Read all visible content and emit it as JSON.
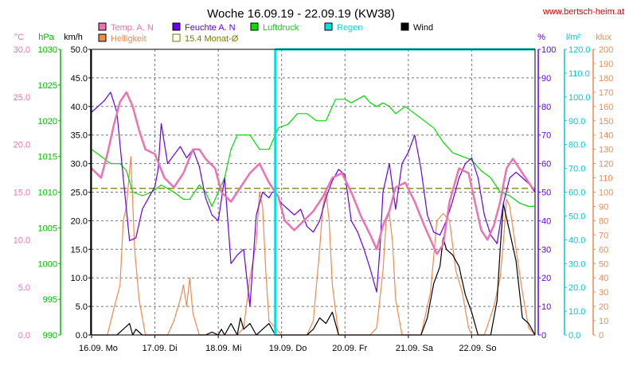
{
  "header": {
    "title": "Woche 16.09.19 - 22.09.19 (KW38)",
    "website": "www.bertsch-heim.at"
  },
  "chart_data": {
    "type": "line",
    "title": "Woche 16.09.19 - 22.09.19 (KW38)",
    "xlim": [
      0,
      7
    ],
    "x_tick_labels": [
      "16.09.  Mo",
      "17.09.  Di",
      "18.09.  Mi",
      "19.09.  Do",
      "20.09.  Fr",
      "21.09.  Sa",
      "22.09.  So"
    ],
    "legend": [
      {
        "label": "Temp. A. N",
        "color": "#ee72b0",
        "swatch": "box"
      },
      {
        "label": "Feuchte A. N",
        "color": "#6600ee",
        "swatch": "box"
      },
      {
        "label": "Luftdruck",
        "color": "#00dd00",
        "swatch": "box"
      },
      {
        "label": "Regen",
        "color": "#00e0e0",
        "swatch": "box"
      },
      {
        "label": "Wind",
        "color": "#000000",
        "swatch": "box"
      },
      {
        "label": "Helligkeit",
        "color": "#f08a50",
        "swatch": "box"
      },
      {
        "label": "15.4 Monat-Ø",
        "color": "#7a7a00",
        "swatch": "outline"
      }
    ],
    "axes": {
      "temp": {
        "unit": "°C",
        "color": "#ee72b0",
        "range": [
          0,
          30
        ],
        "ticks": [
          "0.0",
          "5.0",
          "10.0",
          "15.0",
          "20.0",
          "25.0",
          "30.0"
        ]
      },
      "pressure": {
        "unit": "hPa",
        "color": "#00bb00",
        "range": [
          990,
          1030
        ],
        "ticks": [
          "990",
          "995",
          "1000",
          "1005",
          "1010",
          "1015",
          "1020",
          "1025",
          "1030"
        ]
      },
      "wind": {
        "unit": "km/h",
        "color": "#000000",
        "range": [
          0,
          50
        ],
        "ticks": [
          "0.0",
          "5.0",
          "10.0",
          "15.0",
          "20.0",
          "25.0",
          "30.0",
          "35.0",
          "40.0",
          "45.0",
          "50.0"
        ]
      },
      "humidity": {
        "unit": "%",
        "color": "#6600ee",
        "range": [
          0,
          100
        ],
        "ticks": [
          "0",
          "10",
          "20",
          "30",
          "40",
          "50",
          "60",
          "70",
          "80",
          "90",
          "100"
        ]
      },
      "rain": {
        "unit": "l/m²",
        "color": "#00cccc",
        "range": [
          0,
          120
        ],
        "ticks": [
          "0.0",
          "10.0",
          "20.0",
          "30.0",
          "40.0",
          "50.0",
          "60.0",
          "70.0",
          "80.0",
          "90.0",
          "100.0",
          "110.0",
          "120.0"
        ]
      },
      "lux": {
        "unit": "klux",
        "color": "#f08a50",
        "range": [
          0,
          200
        ],
        "ticks": [
          "0",
          "10",
          "20",
          "30",
          "40",
          "50",
          "60",
          "70",
          "80",
          "90",
          "100",
          "110",
          "120",
          "130",
          "140",
          "150",
          "160",
          "170",
          "180",
          "190",
          "200"
        ]
      }
    },
    "grid": true,
    "month_average_temp": 15.4,
    "series": [
      {
        "name": "Temp. A. N",
        "axis": "temp",
        "color": "#ee72b0",
        "x": [
          0,
          0.15,
          0.25,
          0.35,
          0.45,
          0.55,
          0.65,
          0.75,
          0.85,
          1.0,
          1.15,
          1.3,
          1.45,
          1.6,
          1.7,
          1.8,
          1.95,
          2.05,
          2.2,
          2.35,
          2.5,
          2.65,
          2.8,
          2.95,
          3.05,
          3.2,
          3.35,
          3.5,
          3.65,
          3.8,
          3.95,
          4.1,
          4.25,
          4.4,
          4.5,
          4.6,
          4.7,
          4.8,
          4.95,
          5.1,
          5.25,
          5.35,
          5.45,
          5.55,
          5.65,
          5.8,
          5.95,
          6.05,
          6.15,
          6.25,
          6.35,
          6.45,
          6.55,
          6.65,
          6.8,
          6.95,
          7.0
        ],
        "y": [
          17.5,
          16.5,
          19.0,
          22.0,
          24.5,
          25.5,
          24.0,
          21.5,
          19.5,
          19.0,
          16.5,
          15.5,
          17.0,
          19.5,
          19.5,
          18.5,
          17.5,
          15.0,
          14.0,
          15.5,
          17.0,
          18.0,
          16.0,
          14.5,
          12.0,
          11.0,
          12.0,
          13.0,
          14.5,
          16.5,
          17.0,
          15.0,
          12.5,
          10.5,
          9.0,
          11.5,
          13.0,
          15.5,
          16.0,
          14.0,
          11.5,
          10.0,
          8.5,
          9.5,
          14.0,
          17.5,
          17.0,
          14.0,
          11.0,
          10.0,
          11.5,
          14.0,
          17.5,
          18.5,
          17.0,
          15.5,
          15.3
        ]
      },
      {
        "name": "Feuchte A. N",
        "axis": "humidity",
        "color": "#6600ee",
        "x": [
          0,
          0.1,
          0.2,
          0.3,
          0.4,
          0.5,
          0.6,
          0.7,
          0.8,
          0.9,
          1.0,
          1.05,
          1.1,
          1.2,
          1.3,
          1.4,
          1.5,
          1.6,
          1.7,
          1.8,
          1.9,
          2.0,
          2.1,
          2.2,
          2.3,
          2.4,
          2.5,
          2.6,
          2.7,
          2.8,
          2.85,
          2.9,
          3.0,
          3.1,
          3.2,
          3.3,
          3.4,
          3.5,
          3.6,
          3.7,
          3.8,
          3.9,
          4.0,
          4.1,
          4.2,
          4.3,
          4.4,
          4.5,
          4.55,
          4.6,
          4.7,
          4.8,
          4.9,
          5.0,
          5.1,
          5.2,
          5.3,
          5.4,
          5.5,
          5.6,
          5.7,
          5.8,
          5.9,
          6.0,
          6.1,
          6.2,
          6.3,
          6.4,
          6.5,
          6.6,
          6.7,
          6.8,
          6.9,
          7.0
        ],
        "y": [
          78,
          80,
          82,
          85,
          78,
          55,
          33,
          34,
          44,
          48,
          52,
          58,
          74,
          60,
          63,
          66,
          62,
          65,
          59,
          48,
          42,
          40,
          55,
          25,
          28,
          30,
          10,
          42,
          50,
          48,
          50,
          50,
          46,
          44,
          42,
          44,
          38,
          36,
          40,
          48,
          54,
          58,
          56,
          40,
          36,
          30,
          23,
          15,
          30,
          50,
          60,
          44,
          60,
          64,
          70,
          58,
          42,
          36,
          35,
          40,
          47,
          55,
          60,
          62,
          55,
          42,
          35,
          32,
          46,
          55,
          57,
          55,
          53,
          50
        ]
      },
      {
        "name": "Luftdruck",
        "axis": "pressure",
        "color": "#00dd00",
        "x": [
          0,
          0.15,
          0.3,
          0.45,
          0.55,
          0.65,
          0.8,
          0.95,
          1.1,
          1.3,
          1.45,
          1.55,
          1.7,
          1.8,
          1.9,
          2.0,
          2.1,
          2.2,
          2.3,
          2.5,
          2.65,
          2.8,
          2.95,
          3.1,
          3.25,
          3.4,
          3.55,
          3.7,
          3.85,
          4.0,
          4.1,
          4.2,
          4.3,
          4.4,
          4.5,
          4.6,
          4.7,
          4.8,
          4.95,
          5.1,
          5.25,
          5.4,
          5.55,
          5.7,
          5.85,
          6.0,
          6.15,
          6.3,
          6.45,
          6.6,
          6.75,
          6.9,
          7.0
        ],
        "y": [
          1016,
          1015,
          1014,
          1014,
          1013,
          1010,
          1009.5,
          1010,
          1011,
          1010,
          1009,
          1009,
          1011,
          1010,
          1008,
          1010,
          1012,
          1016,
          1018,
          1018,
          1016,
          1016,
          1019,
          1019.5,
          1021,
          1021,
          1020,
          1020,
          1023,
          1023,
          1022.5,
          1023,
          1023.5,
          1022.5,
          1022,
          1022.5,
          1022,
          1021,
          1022,
          1021,
          1020,
          1019,
          1017,
          1015.5,
          1015,
          1014.5,
          1013,
          1012,
          1010,
          1009.5,
          1008.5,
          1008,
          1008
        ]
      },
      {
        "name": "Regen",
        "axis": "rain",
        "color": "#00e0e0",
        "x": [
          2.9,
          2.9
        ],
        "y": [
          0,
          120
        ]
      },
      {
        "name": "Wind",
        "axis": "wind",
        "color": "#000000",
        "x": [
          0,
          0.4,
          0.5,
          0.6,
          0.65,
          0.7,
          0.8,
          1.0,
          1.2,
          1.4,
          1.6,
          1.8,
          1.9,
          2.0,
          2.05,
          2.1,
          2.2,
          2.3,
          2.35,
          2.4,
          2.5,
          2.6,
          2.7,
          2.8,
          2.9,
          3.0,
          3.2,
          3.4,
          3.5,
          3.6,
          3.7,
          3.8,
          3.9,
          4.0,
          4.2,
          4.4,
          4.6,
          4.8,
          5.0,
          5.2,
          5.3,
          5.4,
          5.5,
          5.55,
          5.6,
          5.7,
          5.8,
          5.9,
          6.0,
          6.1,
          6.2,
          6.3,
          6.4,
          6.45,
          6.5,
          6.6,
          6.7,
          6.8,
          6.9,
          7.0
        ],
        "y": [
          0,
          0,
          1,
          2,
          0,
          1,
          0,
          0,
          0,
          0,
          0,
          0,
          0.5,
          0,
          1,
          0,
          2,
          0,
          3,
          1,
          2,
          0,
          1,
          2,
          0,
          0,
          0,
          0,
          1,
          3,
          2,
          4,
          0,
          0,
          0,
          0,
          0,
          0,
          0,
          0,
          3,
          9,
          12,
          17,
          15,
          14,
          12,
          7,
          4,
          0,
          0,
          0,
          6,
          15,
          23,
          18,
          13,
          3,
          2,
          0
        ]
      },
      {
        "name": "Helligkeit",
        "axis": "lux",
        "color": "#f08a50",
        "x": [
          0,
          0.15,
          0.25,
          0.35,
          0.45,
          0.5,
          0.55,
          0.62,
          0.68,
          0.75,
          0.85,
          1.0,
          1.1,
          1.2,
          1.3,
          1.4,
          1.45,
          1.5,
          1.55,
          1.6,
          1.7,
          1.8,
          2.0,
          2.2,
          2.3,
          2.4,
          2.5,
          2.6,
          2.65,
          2.7,
          2.75,
          2.8,
          3.0,
          3.2,
          3.4,
          3.5,
          3.6,
          3.65,
          3.7,
          3.75,
          3.8,
          3.9,
          4.0,
          4.2,
          4.4,
          4.5,
          4.6,
          4.65,
          4.7,
          4.75,
          4.8,
          4.9,
          5.0,
          5.2,
          5.35,
          5.45,
          5.55,
          5.65,
          5.75,
          5.85,
          5.95,
          6.0,
          6.2,
          6.35,
          6.45,
          6.5,
          6.55,
          6.6,
          6.7,
          6.8,
          6.9,
          7.0
        ],
        "y": [
          0,
          0,
          0,
          18,
          35,
          80,
          90,
          125,
          60,
          25,
          0,
          0,
          0,
          0,
          10,
          25,
          35,
          20,
          40,
          15,
          0,
          0,
          0,
          0,
          0,
          5,
          40,
          65,
          100,
          90,
          45,
          10,
          0,
          0,
          0,
          10,
          60,
          90,
          100,
          80,
          35,
          0,
          0,
          0,
          0,
          5,
          45,
          80,
          85,
          65,
          25,
          0,
          0,
          0,
          30,
          80,
          85,
          80,
          45,
          30,
          5,
          0,
          0,
          20,
          40,
          65,
          95,
          90,
          60,
          30,
          5,
          0
        ]
      }
    ]
  }
}
